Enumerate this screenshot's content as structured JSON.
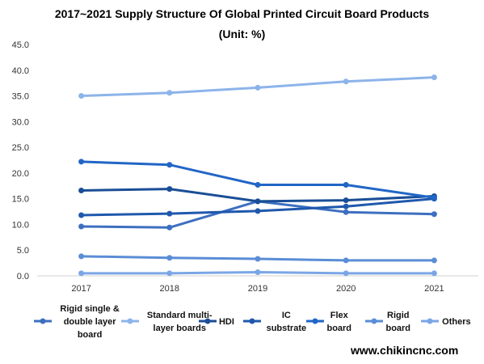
{
  "chart_data": {
    "type": "line",
    "title": "2017~2021 Supply Structure Of Global Printed Circuit Board Products",
    "subtitle": "(Unit: %)",
    "xlabel": "",
    "ylabel": "",
    "x": [
      "2017",
      "2018",
      "2019",
      "2020",
      "2021"
    ],
    "ylim": [
      0,
      45
    ],
    "yticks": [
      "0.0",
      "5.0",
      "10.0",
      "15.0",
      "20.0",
      "25.0",
      "30.0",
      "35.0",
      "40.0",
      "45.0"
    ],
    "grid": false,
    "legend_position": "bottom",
    "series": [
      {
        "name": "Rigid single & double layer board",
        "label_lines": [
          "Rigid single &",
          "double layer",
          "board"
        ],
        "color": "#3d6fc0",
        "values": [
          9.6,
          9.4,
          14.5,
          12.4,
          12.0
        ]
      },
      {
        "name": "Standard multi-layer boards",
        "label_lines": [
          "Standard multi-",
          "layer boards"
        ],
        "color": "#8db4ea",
        "values": [
          35.0,
          35.6,
          36.6,
          37.8,
          38.6
        ]
      },
      {
        "name": "HDI",
        "label_lines": [
          "HDI"
        ],
        "color": "#1a4e96",
        "values": [
          16.6,
          16.9,
          14.5,
          14.7,
          15.5
        ]
      },
      {
        "name": "IC substrate",
        "label_lines": [
          "IC",
          "substrate"
        ],
        "color": "#1f58ad",
        "values": [
          11.8,
          12.1,
          12.6,
          13.5,
          15.0
        ]
      },
      {
        "name": "Flex board",
        "label_lines": [
          "Flex",
          "board"
        ],
        "color": "#2166c6",
        "values": [
          22.2,
          21.6,
          17.7,
          17.7,
          15.2
        ]
      },
      {
        "name": "Rigid board",
        "label_lines": [
          "Rigid",
          "board"
        ],
        "color": "#5a8dd6",
        "values": [
          3.8,
          3.5,
          3.3,
          3.0,
          3.0
        ]
      },
      {
        "name": "Others",
        "label_lines": [
          "Others"
        ],
        "color": "#7aa6e6",
        "values": [
          0.5,
          0.5,
          0.7,
          0.5,
          0.5
        ]
      }
    ]
  },
  "source_text": "www.chikincnc.com"
}
